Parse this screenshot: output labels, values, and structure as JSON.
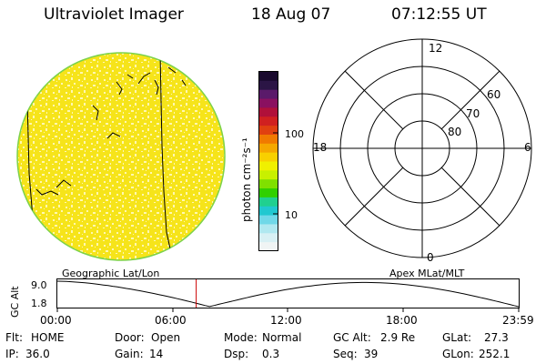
{
  "header": {
    "title": "Ultraviolet Imager",
    "date": "18 Aug 07",
    "time": "07:12:55 UT"
  },
  "colorbar": {
    "unit": "photon cm⁻²s⁻¹",
    "ticks": [
      {
        "label": "100",
        "value": 100
      },
      {
        "label": "10",
        "value": 10
      }
    ],
    "colors": [
      "#1a0a2e",
      "#2b1545",
      "#5a1a6a",
      "#8a1060",
      "#b0103a",
      "#d02020",
      "#e04010",
      "#f07a00",
      "#f5a800",
      "#f8d000",
      "#f0f000",
      "#c8f000",
      "#80e000",
      "#30d000",
      "#20d090",
      "#20c8d0",
      "#70d8e8",
      "#b0e8f0",
      "#d8f0f4",
      "#f0f4f4"
    ]
  },
  "globe": {
    "fill_color": "#f6e41a",
    "speck_color": "#fff7b0",
    "limb_color": "#7cd24a"
  },
  "polar": {
    "lat_labels": [
      {
        "label": "80",
        "lat": 80
      },
      {
        "label": "70",
        "lat": 70
      },
      {
        "label": "60",
        "lat": 60
      }
    ],
    "mlt_labels": [
      {
        "label": "12",
        "mlt": 12
      },
      {
        "label": "18",
        "mlt": 18
      },
      {
        "label": "6",
        "mlt": 6
      },
      {
        "label": "0",
        "mlt": 0
      }
    ]
  },
  "orbit": {
    "left_label": "Geographic Lat/Lon",
    "right_label": "Apex MLat/MLT",
    "axis_label": "GC Alt",
    "y_labels": [
      "9.0",
      "1.8"
    ],
    "x_labels": [
      "00:00",
      "06:00",
      "12:00",
      "18:00",
      "23:59"
    ],
    "cursor_time_hours": 7.2155,
    "cursor_color": "#cc0000"
  },
  "status": {
    "row1": [
      {
        "label": "Flt:",
        "value": "HOME"
      },
      {
        "label": "Door:",
        "value": "Open"
      },
      {
        "label": "Mode:",
        "value": "Normal"
      },
      {
        "label": "GC Alt:",
        "value": "2.9 Re"
      },
      {
        "label": "GLat:",
        "value": "27.3"
      }
    ],
    "row2": [
      {
        "label": "IP:",
        "value": "36.0"
      },
      {
        "label": "Gain:",
        "value": "14"
      },
      {
        "label": "Dsp:",
        "value": "0.3"
      },
      {
        "label": "Seq:",
        "value": "39"
      },
      {
        "label": "GLon:",
        "value": "252.1"
      }
    ]
  }
}
